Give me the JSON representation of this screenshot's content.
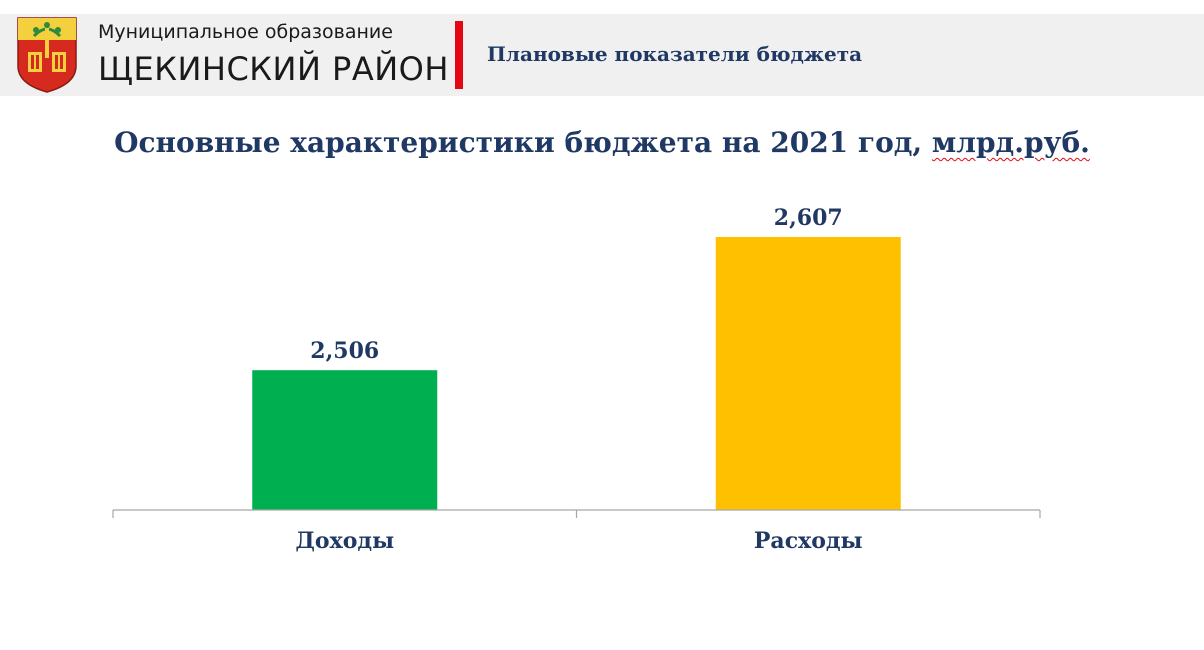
{
  "header": {
    "org_line1": "Муниципальное образование",
    "org_line2": "ЩЕКИНСКИЙ РАЙОН",
    "section_title": "Плановые показатели бюджета"
  },
  "chart_data": {
    "type": "bar",
    "title_main": "Основные характеристики бюджета на 2021 год,",
    "title_unit": "млрд.руб.",
    "categories": [
      "Доходы",
      "Расходы"
    ],
    "values": [
      2.506,
      2.607
    ],
    "value_labels": [
      "2,506",
      "2,607"
    ],
    "colors": [
      "#00b050",
      "#ffc000"
    ],
    "grid": false,
    "legend": "none"
  }
}
